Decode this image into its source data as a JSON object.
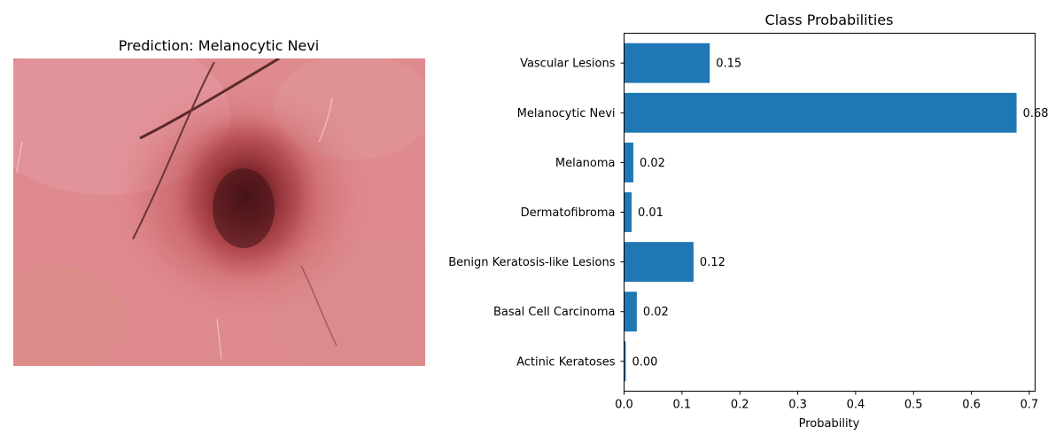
{
  "left_panel": {
    "title": "Prediction: Melanocytic Nevi"
  },
  "chart_data": {
    "type": "bar",
    "orientation": "horizontal",
    "title": "Class Probabilities",
    "xlabel": "Probability",
    "ylabel": "",
    "categories": [
      "Actinic Keratoses",
      "Basal Cell Carcinoma",
      "Benign Keratosis-like Lesions",
      "Dermatofibroma",
      "Melanoma",
      "Melanocytic Nevi",
      "Vascular Lesions"
    ],
    "values": [
      0.003,
      0.022,
      0.12,
      0.013,
      0.016,
      0.678,
      0.148
    ],
    "value_labels": [
      "0.00",
      "0.02",
      "0.12",
      "0.01",
      "0.02",
      "0.68",
      "0.15"
    ],
    "xlim": [
      0,
      0.71
    ],
    "xticks": [
      0.0,
      0.1,
      0.2,
      0.3,
      0.4,
      0.5,
      0.6,
      0.7
    ],
    "xtick_labels": [
      "0.0",
      "0.1",
      "0.2",
      "0.3",
      "0.4",
      "0.5",
      "0.6",
      "0.7"
    ],
    "bar_color": "#1f77b4",
    "grid": false,
    "legend": "none"
  }
}
